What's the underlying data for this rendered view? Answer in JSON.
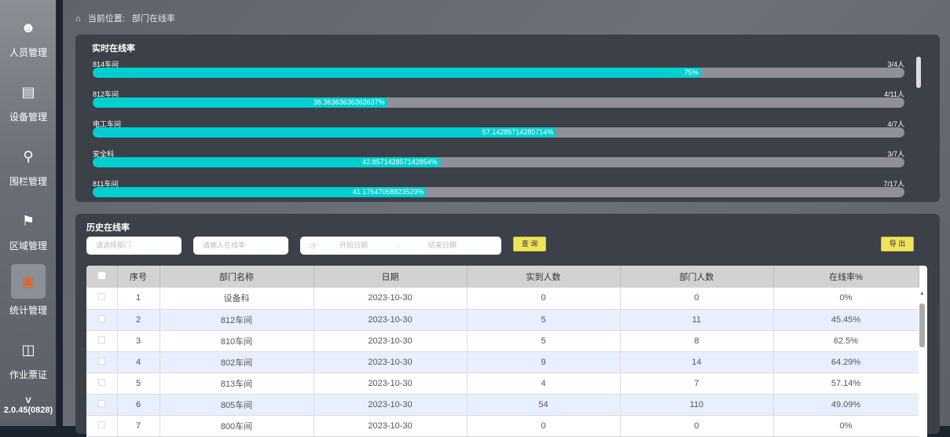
{
  "sidebar": {
    "items": [
      {
        "label": "人员管理",
        "icon": "user-list-icon"
      },
      {
        "label": "设备管理",
        "icon": "router-icon"
      },
      {
        "label": "围栏管理",
        "icon": "map-pin-icon"
      },
      {
        "label": "区域管理",
        "icon": "map-area-icon"
      },
      {
        "label": "统计管理",
        "icon": "monitor-chart-icon",
        "active": true
      },
      {
        "label": "作业票证",
        "icon": "monitor-icon"
      }
    ],
    "version": "V 2.0.45(0828)",
    "accent": "#e8621e"
  },
  "breadcrumb": {
    "prefix": "当前位置:",
    "current": "部门在线率"
  },
  "realtime": {
    "title": "实时在线率",
    "bar_color": "#00cfd1",
    "rows": [
      {
        "name": "814车间",
        "count": "3/4人",
        "percent": 75,
        "label": "75%"
      },
      {
        "name": "812车间",
        "count": "4/11人",
        "percent": 36.36363636363637,
        "label": "36.36363636363637%"
      },
      {
        "name": "电工车间",
        "count": "4/7人",
        "percent": 57.14285714285714,
        "label": "57.14285714285714%"
      },
      {
        "name": "安全科",
        "count": "3/7人",
        "percent": 42.857142857142854,
        "label": "42.857142857142854%"
      },
      {
        "name": "811车间",
        "count": "7/17人",
        "percent": 41.17647058823529,
        "label": "41.17647058823529%"
      }
    ]
  },
  "history": {
    "title": "历史在线率",
    "dept_placeholder": "请选择部门",
    "rate_placeholder": "请输入在线率",
    "start_placeholder": "开始日期",
    "end_placeholder": "结束日期",
    "separator": "-",
    "query_label": "查 询",
    "export_label": "导 出",
    "columns": [
      "序号",
      "部门名称",
      "日期",
      "实到人数",
      "部门人数",
      "在线率%"
    ],
    "rows": [
      [
        "1",
        "设备科",
        "2023-10-30",
        "0",
        "0",
        "0%"
      ],
      [
        "2",
        "812车间",
        "2023-10-30",
        "5",
        "11",
        "45.45%"
      ],
      [
        "3",
        "810车间",
        "2023-10-30",
        "5",
        "8",
        "62.5%"
      ],
      [
        "4",
        "802车间",
        "2023-10-30",
        "9",
        "14",
        "64.29%"
      ],
      [
        "5",
        "813车间",
        "2023-10-30",
        "4",
        "7",
        "57.14%"
      ],
      [
        "6",
        "805车间",
        "2023-10-30",
        "54",
        "110",
        "49.09%"
      ],
      [
        "7",
        "800车间",
        "2023-10-30",
        "0",
        "0",
        "0%"
      ]
    ]
  }
}
